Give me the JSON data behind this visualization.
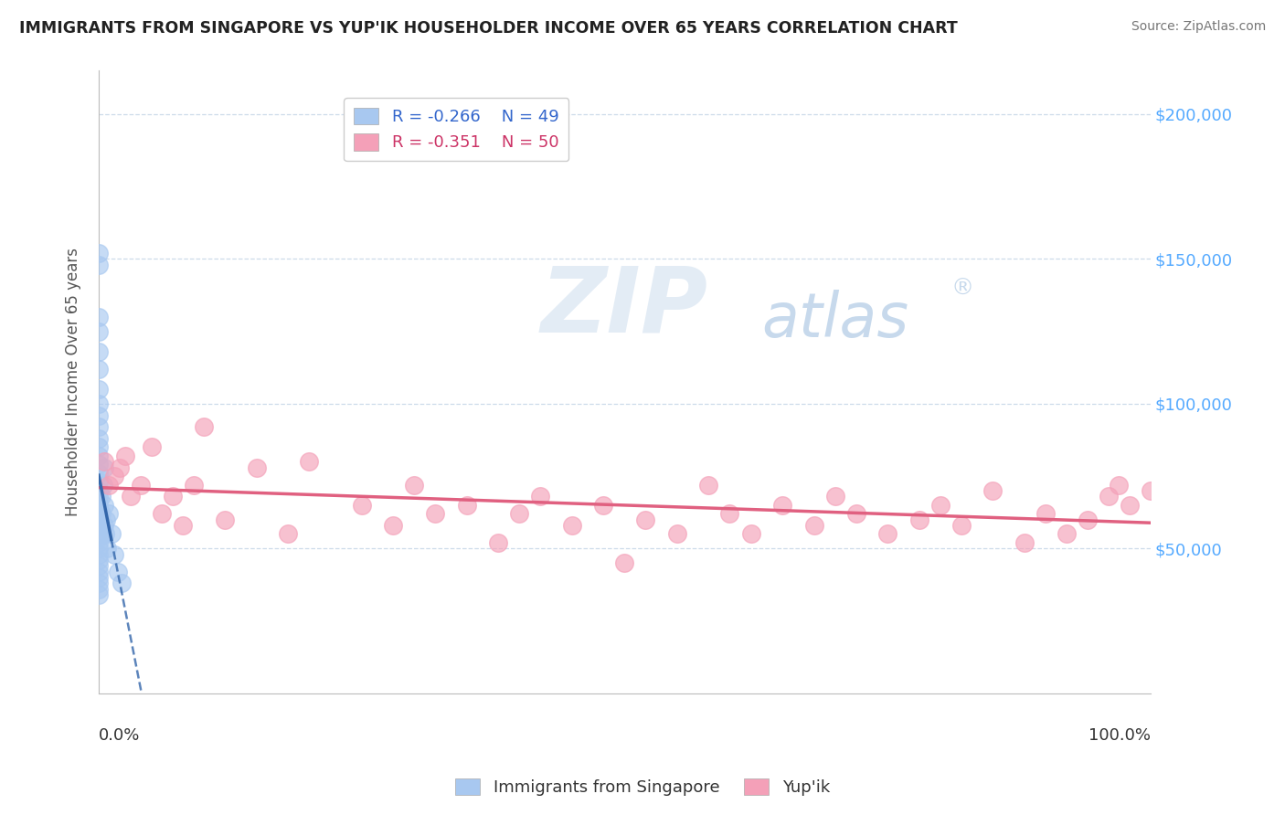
{
  "title": "IMMIGRANTS FROM SINGAPORE VS YUP'IK HOUSEHOLDER INCOME OVER 65 YEARS CORRELATION CHART",
  "source": "Source: ZipAtlas.com",
  "ylabel": "Householder Income Over 65 years",
  "legend_label1": "Immigrants from Singapore",
  "legend_label2": "Yup'ik",
  "r1": -0.266,
  "n1": 49,
  "r2": -0.351,
  "n2": 50,
  "color_blue": "#A8C8F0",
  "color_pink": "#F4A0B8",
  "color_blue_line": "#3366AA",
  "color_pink_line": "#E06080",
  "singapore_x": [
    0.0,
    0.0,
    0.0,
    0.0,
    0.0,
    0.0,
    0.0,
    0.0,
    0.0,
    0.0,
    0.0,
    0.0,
    0.0,
    0.0,
    0.0,
    0.0,
    0.0,
    0.0,
    0.0,
    0.0,
    0.0,
    0.0,
    0.0,
    0.0,
    0.0,
    0.0,
    0.0,
    0.0,
    0.0,
    0.0,
    0.0,
    0.0,
    0.0,
    0.0,
    0.0,
    0.003,
    0.003,
    0.004,
    0.005,
    0.005,
    0.005,
    0.006,
    0.007,
    0.008,
    0.01,
    0.012,
    0.015,
    0.018,
    0.022
  ],
  "singapore_y": [
    152000,
    148000,
    130000,
    125000,
    118000,
    112000,
    105000,
    100000,
    96000,
    92000,
    88000,
    85000,
    82000,
    79000,
    76000,
    73000,
    70000,
    68000,
    66000,
    64000,
    62000,
    60000,
    58000,
    56000,
    54000,
    52000,
    50000,
    48000,
    46000,
    44000,
    42000,
    40000,
    38000,
    36000,
    34000,
    68000,
    62000,
    72000,
    78000,
    65000,
    58000,
    55000,
    60000,
    50000,
    62000,
    55000,
    48000,
    42000,
    38000
  ],
  "yupik_x": [
    0.005,
    0.01,
    0.015,
    0.02,
    0.025,
    0.03,
    0.04,
    0.05,
    0.06,
    0.07,
    0.08,
    0.09,
    0.1,
    0.12,
    0.15,
    0.18,
    0.2,
    0.25,
    0.28,
    0.3,
    0.32,
    0.35,
    0.38,
    0.4,
    0.42,
    0.45,
    0.48,
    0.5,
    0.52,
    0.55,
    0.58,
    0.6,
    0.62,
    0.65,
    0.68,
    0.7,
    0.72,
    0.75,
    0.78,
    0.8,
    0.82,
    0.85,
    0.88,
    0.9,
    0.92,
    0.94,
    0.96,
    0.97,
    0.98,
    1.0
  ],
  "yupik_y": [
    80000,
    72000,
    75000,
    78000,
    82000,
    68000,
    72000,
    85000,
    62000,
    68000,
    58000,
    72000,
    92000,
    60000,
    78000,
    55000,
    80000,
    65000,
    58000,
    72000,
    62000,
    65000,
    52000,
    62000,
    68000,
    58000,
    65000,
    45000,
    60000,
    55000,
    72000,
    62000,
    55000,
    65000,
    58000,
    68000,
    62000,
    55000,
    60000,
    65000,
    58000,
    70000,
    52000,
    62000,
    55000,
    60000,
    68000,
    72000,
    65000,
    70000
  ],
  "yaxis_ticks": [
    0,
    50000,
    100000,
    150000,
    200000
  ],
  "yaxis_labels": [
    "",
    "$50,000",
    "$100,000",
    "$150,000",
    "$200,000"
  ],
  "ylim": [
    0,
    215000
  ],
  "xlim": [
    0.0,
    1.0
  ],
  "grid_color": "#C8D8E8",
  "bg_color": "#FFFFFF",
  "title_color": "#222222",
  "source_color": "#777777",
  "ylabel_color": "#555555",
  "right_tick_color": "#55AAFF"
}
